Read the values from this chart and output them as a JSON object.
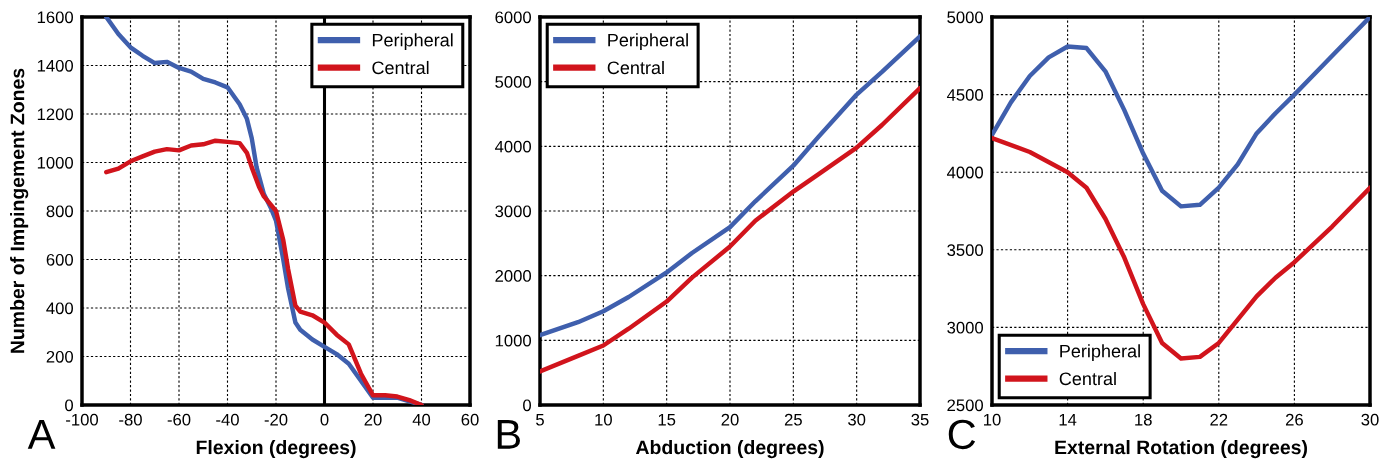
{
  "chart_data": [
    {
      "type": "line",
      "xlabel": "Flexion (degrees)",
      "ylabel": "Number of Impingement Zones",
      "annotations": [
        "A"
      ],
      "xlim": [
        -100,
        60
      ],
      "xticks": [
        -100,
        -80,
        -60,
        -40,
        -20,
        0,
        20,
        40,
        60
      ],
      "ylim": [
        0,
        1600
      ],
      "yticks": [
        0,
        200,
        400,
        600,
        800,
        1000,
        1200,
        1400,
        1600
      ],
      "grid": true,
      "legend": "top right",
      "line_style": "solid",
      "marker": "none",
      "ref_lines": [
        {
          "axis": "x",
          "value": 0,
          "color": "#000000",
          "line_style": "solid"
        }
      ],
      "series": [
        {
          "name": "Peripheral",
          "color": "#3f5fad",
          "x": [
            -90,
            -85,
            -80,
            -75,
            -70,
            -65,
            -60,
            -55,
            -50,
            -45,
            -40,
            -35,
            -32,
            -30,
            -28,
            -25,
            -22,
            -20,
            -17,
            -15,
            -12,
            -10,
            -5,
            0,
            5,
            10,
            15,
            20,
            25,
            30,
            35,
            40
          ],
          "values": [
            1600,
            1530,
            1475,
            1440,
            1410,
            1415,
            1390,
            1375,
            1345,
            1330,
            1310,
            1240,
            1180,
            1100,
            980,
            870,
            810,
            760,
            600,
            480,
            340,
            310,
            270,
            240,
            210,
            170,
            100,
            30,
            30,
            30,
            15,
            0
          ]
        },
        {
          "name": "Central",
          "color": "#d1141c",
          "x": [
            -90,
            -85,
            -80,
            -75,
            -70,
            -65,
            -60,
            -55,
            -50,
            -45,
            -40,
            -35,
            -32,
            -30,
            -27,
            -25,
            -20,
            -17,
            -15,
            -12,
            -10,
            -5,
            0,
            5,
            10,
            15,
            20,
            25,
            30,
            35,
            40
          ],
          "values": [
            960,
            975,
            1005,
            1025,
            1045,
            1055,
            1050,
            1070,
            1075,
            1090,
            1085,
            1080,
            1040,
            980,
            900,
            860,
            800,
            680,
            560,
            410,
            385,
            370,
            340,
            290,
            250,
            130,
            40,
            40,
            35,
            20,
            0
          ]
        }
      ]
    },
    {
      "type": "line",
      "xlabel": "Abduction (degrees)",
      "annotations": [
        "B"
      ],
      "xlim": [
        5,
        35
      ],
      "xticks": [
        5,
        10,
        15,
        20,
        25,
        30,
        35
      ],
      "ylim": [
        0,
        6000
      ],
      "yticks": [
        0,
        1000,
        2000,
        3000,
        4000,
        5000,
        6000
      ],
      "grid": true,
      "legend": "top left",
      "line_style": "solid",
      "marker": "none",
      "series": [
        {
          "name": "Peripheral",
          "color": "#3f5fad",
          "x": [
            5,
            8,
            10,
            12,
            15,
            17,
            20,
            22,
            25,
            27,
            30,
            32,
            35
          ],
          "values": [
            1080,
            1280,
            1450,
            1670,
            2050,
            2350,
            2750,
            3150,
            3700,
            4150,
            4800,
            5150,
            5700
          ]
        },
        {
          "name": "Central",
          "color": "#d1141c",
          "x": [
            5,
            8,
            10,
            12,
            15,
            17,
            20,
            22,
            25,
            27,
            30,
            32,
            35
          ],
          "values": [
            520,
            760,
            920,
            1180,
            1600,
            1970,
            2450,
            2850,
            3300,
            3570,
            3980,
            4330,
            4900
          ]
        }
      ]
    },
    {
      "type": "line",
      "xlabel": "External Rotation (degrees)",
      "annotations": [
        "C"
      ],
      "xlim": [
        10,
        30
      ],
      "xticks": [
        10,
        14,
        18,
        22,
        26,
        30
      ],
      "ylim": [
        2500,
        5000
      ],
      "yticks": [
        2500,
        3000,
        3500,
        4000,
        4500,
        5000
      ],
      "grid": true,
      "legend": "bottom left",
      "line_style": "solid",
      "marker": "none",
      "series": [
        {
          "name": "Peripheral",
          "color": "#3f5fad",
          "x": [
            10,
            11,
            12,
            13,
            14,
            15,
            16,
            17,
            18,
            19,
            20,
            21,
            22,
            23,
            24,
            25,
            26,
            28,
            30
          ],
          "values": [
            4240,
            4450,
            4620,
            4740,
            4810,
            4800,
            4650,
            4400,
            4120,
            3880,
            3780,
            3790,
            3900,
            4050,
            4250,
            4380,
            4500,
            4750,
            5000
          ]
        },
        {
          "name": "Central",
          "color": "#d1141c",
          "x": [
            10,
            12,
            14,
            15,
            16,
            17,
            18,
            19,
            20,
            21,
            22,
            23,
            24,
            25,
            26,
            28,
            30
          ],
          "values": [
            4220,
            4130,
            4000,
            3900,
            3700,
            3450,
            3150,
            2900,
            2800,
            2810,
            2900,
            3050,
            3200,
            3320,
            3420,
            3650,
            3900
          ]
        }
      ]
    }
  ]
}
